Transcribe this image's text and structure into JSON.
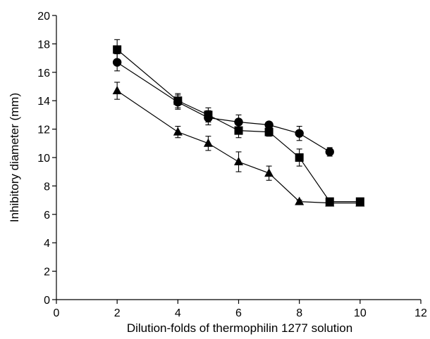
{
  "chart_data": {
    "type": "line",
    "xlabel": "Dilution-folds of thermophilin 1277 solution",
    "ylabel": "Inhibitory diameter (mm)",
    "xlim": [
      0,
      12
    ],
    "ylim": [
      0,
      20
    ],
    "xticks": [
      0,
      2,
      4,
      6,
      8,
      10,
      12
    ],
    "yticks": [
      0,
      2,
      4,
      6,
      8,
      10,
      12,
      14,
      16,
      18,
      20
    ],
    "grid": false,
    "legend": "none",
    "series": [
      {
        "marker": "square",
        "x": [
          2,
          4,
          5,
          6,
          7,
          8,
          9,
          10
        ],
        "y": [
          17.6,
          14.0,
          13.0,
          11.9,
          11.8,
          10.0,
          6.9,
          6.9
        ],
        "err": [
          0.7,
          0.5,
          0.5,
          0.5,
          0.3,
          0.6,
          0.2,
          0.2
        ]
      },
      {
        "marker": "circle",
        "x": [
          2,
          4,
          5,
          6,
          7,
          8,
          9
        ],
        "y": [
          16.7,
          13.9,
          12.8,
          12.5,
          12.3,
          11.7,
          10.4
        ],
        "err": [
          0.6,
          0.5,
          0.5,
          0.5,
          0.2,
          0.5,
          0.3
        ]
      },
      {
        "marker": "triangle",
        "x": [
          2,
          4,
          5,
          6,
          7,
          8,
          9,
          10
        ],
        "y": [
          14.7,
          11.8,
          11.0,
          9.7,
          8.9,
          6.9,
          6.8,
          6.8
        ],
        "err": [
          0.6,
          0.4,
          0.5,
          0.7,
          0.5,
          0.1,
          0.1,
          0.1
        ]
      }
    ]
  }
}
